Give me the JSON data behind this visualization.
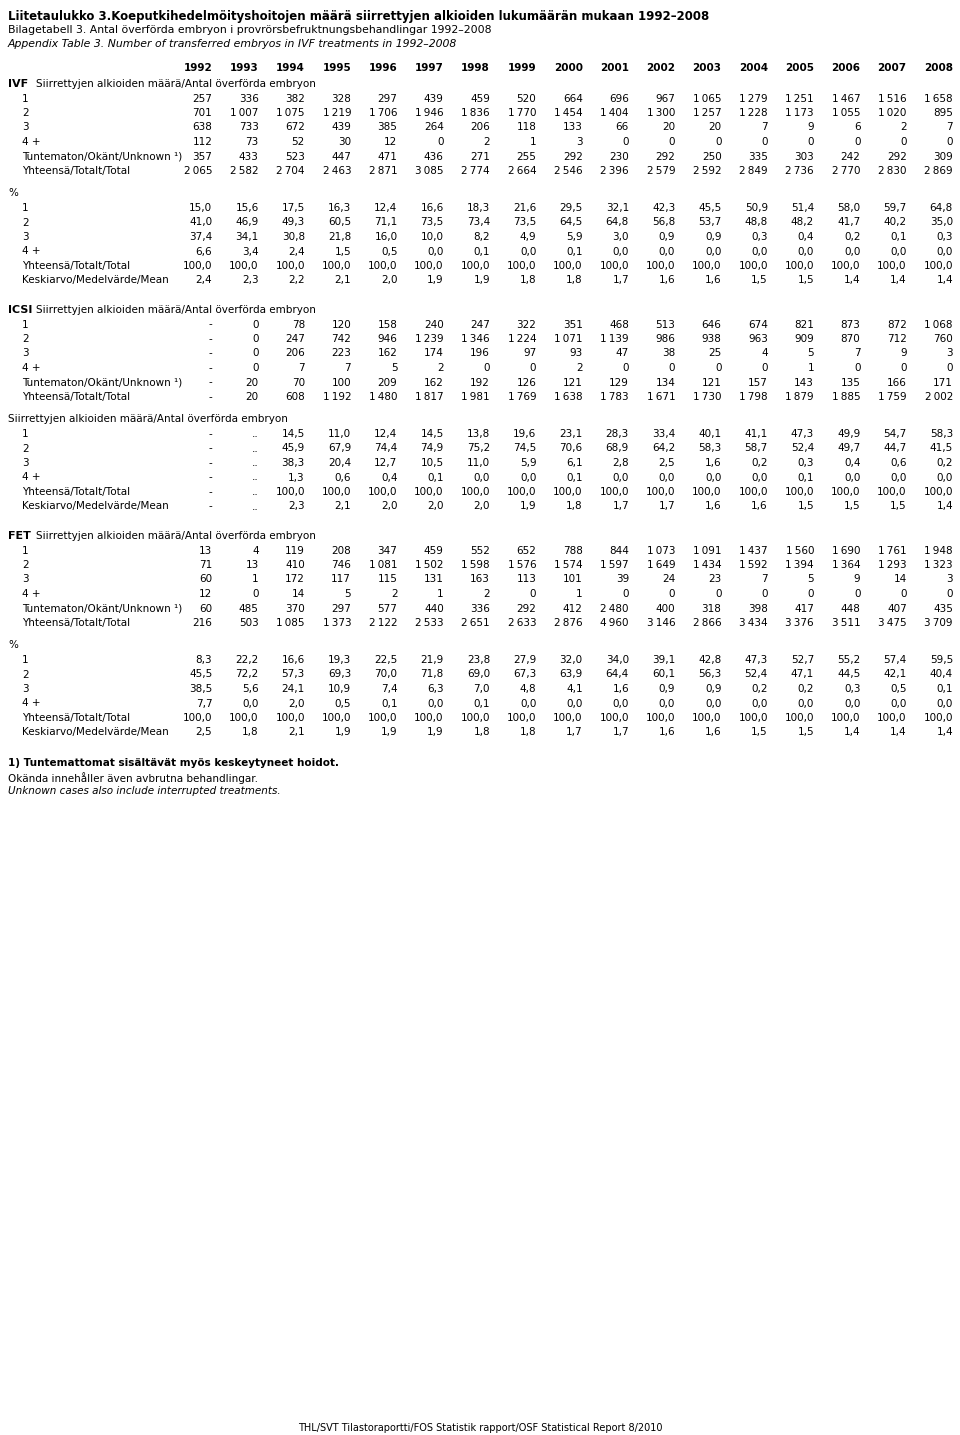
{
  "title1": "Liitetaulukko 3.Koeputkihedelmöityshoitojen määrä siirrettyjen alkioiden lukumäärän mukaan 1992–2008",
  "title2": "Bilagetabell 3. Antal överförda embryon i provrörsbefruktnungsbehandlingar 1992–2008",
  "title3": "Appendix Table 3. Number of transferred embryos in IVF treatments in 1992–2008",
  "years": [
    "1992",
    "1993",
    "1994",
    "1995",
    "1996",
    "1997",
    "1998",
    "1999",
    "2000",
    "2001",
    "2002",
    "2003",
    "2004",
    "2005",
    "2006",
    "2007",
    "2008"
  ],
  "footnote1": "1) Tuntemattomat sisältävät myös keskeytyneet hoidot.",
  "footnote2": "Okända innehåller även avbrutna behandlingar.",
  "footnote3": "Unknown cases also include interrupted treatments.",
  "footer": "THL/SVT Tilastoraportti/FOS Statistik rapport/OSF Statistical Report 8/2010",
  "IVF": {
    "counts": {
      "1": [
        257,
        336,
        382,
        328,
        297,
        439,
        459,
        520,
        664,
        696,
        967,
        1065,
        1279,
        1251,
        1467,
        1516,
        1658
      ],
      "2": [
        701,
        1007,
        1075,
        1219,
        1706,
        1946,
        1836,
        1770,
        1454,
        1404,
        1300,
        1257,
        1228,
        1173,
        1055,
        1020,
        895
      ],
      "3": [
        638,
        733,
        672,
        439,
        385,
        264,
        206,
        118,
        133,
        66,
        20,
        20,
        7,
        9,
        6,
        2,
        7
      ],
      "4+": [
        112,
        73,
        52,
        30,
        12,
        0,
        2,
        1,
        3,
        0,
        0,
        0,
        0,
        0,
        0,
        0,
        0
      ],
      "Tuntematon": [
        357,
        433,
        523,
        447,
        471,
        436,
        271,
        255,
        292,
        230,
        292,
        250,
        335,
        303,
        242,
        292,
        309
      ],
      "Total": [
        2065,
        2582,
        2704,
        2463,
        2871,
        3085,
        2774,
        2664,
        2546,
        2396,
        2579,
        2592,
        2849,
        2736,
        2770,
        2830,
        2869
      ]
    },
    "pct": {
      "1": [
        "15,0",
        "15,6",
        "17,5",
        "16,3",
        "12,4",
        "16,6",
        "18,3",
        "21,6",
        "29,5",
        "32,1",
        "42,3",
        "45,5",
        "50,9",
        "51,4",
        "58,0",
        "59,7",
        "64,8"
      ],
      "2": [
        "41,0",
        "46,9",
        "49,3",
        "60,5",
        "71,1",
        "73,5",
        "73,4",
        "73,5",
        "64,5",
        "64,8",
        "56,8",
        "53,7",
        "48,8",
        "48,2",
        "41,7",
        "40,2",
        "35,0"
      ],
      "3": [
        "37,4",
        "34,1",
        "30,8",
        "21,8",
        "16,0",
        "10,0",
        "8,2",
        "4,9",
        "5,9",
        "3,0",
        "0,9",
        "0,9",
        "0,3",
        "0,4",
        "0,2",
        "0,1",
        "0,3"
      ],
      "4+": [
        "6,6",
        "3,4",
        "2,4",
        "1,5",
        "0,5",
        "0,0",
        "0,1",
        "0,0",
        "0,1",
        "0,0",
        "0,0",
        "0,0",
        "0,0",
        "0,0",
        "0,0",
        "0,0",
        "0,0"
      ],
      "Total": [
        "100,0",
        "100,0",
        "100,0",
        "100,0",
        "100,0",
        "100,0",
        "100,0",
        "100,0",
        "100,0",
        "100,0",
        "100,0",
        "100,0",
        "100,0",
        "100,0",
        "100,0",
        "100,0",
        "100,0"
      ],
      "Mean": [
        "2,4",
        "2,3",
        "2,2",
        "2,1",
        "2,0",
        "1,9",
        "1,9",
        "1,8",
        "1,8",
        "1,7",
        "1,6",
        "1,6",
        "1,5",
        "1,5",
        "1,4",
        "1,4",
        "1,4"
      ]
    }
  },
  "ICSI": {
    "counts": {
      "1": [
        "-",
        0,
        78,
        120,
        158,
        240,
        247,
        322,
        351,
        468,
        513,
        646,
        674,
        821,
        873,
        872,
        1068
      ],
      "2": [
        "-",
        0,
        247,
        742,
        946,
        1239,
        1346,
        1224,
        1071,
        1139,
        986,
        938,
        963,
        909,
        870,
        712,
        760
      ],
      "3": [
        "-",
        0,
        206,
        223,
        162,
        174,
        196,
        97,
        93,
        47,
        38,
        25,
        4,
        5,
        7,
        9,
        3
      ],
      "4+": [
        "-",
        0,
        7,
        7,
        5,
        2,
        0,
        0,
        2,
        0,
        0,
        0,
        0,
        1,
        0,
        0,
        0
      ],
      "Tuntematon": [
        "-",
        20,
        70,
        100,
        209,
        162,
        192,
        126,
        121,
        129,
        134,
        121,
        157,
        143,
        135,
        166,
        171
      ],
      "Total": [
        "-",
        20,
        608,
        1192,
        1480,
        1817,
        1981,
        1769,
        1638,
        1783,
        1671,
        1730,
        1798,
        1879,
        1885,
        1759,
        2002
      ]
    },
    "pct": {
      "1": [
        "-",
        "..",
        "14,5",
        "11,0",
        "12,4",
        "14,5",
        "13,8",
        "19,6",
        "23,1",
        "28,3",
        "33,4",
        "40,1",
        "41,1",
        "47,3",
        "49,9",
        "54,7",
        "58,3"
      ],
      "2": [
        "-",
        "..",
        "45,9",
        "67,9",
        "74,4",
        "74,9",
        "75,2",
        "74,5",
        "70,6",
        "68,9",
        "64,2",
        "58,3",
        "58,7",
        "52,4",
        "49,7",
        "44,7",
        "41,5"
      ],
      "3": [
        "-",
        "..",
        "38,3",
        "20,4",
        "12,7",
        "10,5",
        "11,0",
        "5,9",
        "6,1",
        "2,8",
        "2,5",
        "1,6",
        "0,2",
        "0,3",
        "0,4",
        "0,6",
        "0,2"
      ],
      "4+": [
        "-",
        "..",
        "1,3",
        "0,6",
        "0,4",
        "0,1",
        "0,0",
        "0,0",
        "0,1",
        "0,0",
        "0,0",
        "0,0",
        "0,0",
        "0,1",
        "0,0",
        "0,0",
        "0,0"
      ],
      "Total": [
        "-",
        "..",
        "100,0",
        "100,0",
        "100,0",
        "100,0",
        "100,0",
        "100,0",
        "100,0",
        "100,0",
        "100,0",
        "100,0",
        "100,0",
        "100,0",
        "100,0",
        "100,0",
        "100,0"
      ],
      "Mean": [
        "-",
        "..",
        "2,3",
        "2,1",
        "2,0",
        "2,0",
        "2,0",
        "1,9",
        "1,8",
        "1,7",
        "1,7",
        "1,6",
        "1,6",
        "1,5",
        "1,5",
        "1,5",
        "1,4"
      ]
    }
  },
  "FET": {
    "counts": {
      "1": [
        13,
        4,
        119,
        208,
        347,
        459,
        552,
        652,
        788,
        844,
        1073,
        1091,
        1437,
        1560,
        1690,
        1761,
        1948
      ],
      "2": [
        71,
        13,
        410,
        746,
        1081,
        1502,
        1598,
        1576,
        1574,
        1597,
        1649,
        1434,
        1592,
        1394,
        1364,
        1293,
        1323
      ],
      "3": [
        60,
        1,
        172,
        117,
        115,
        131,
        163,
        113,
        101,
        39,
        24,
        23,
        7,
        5,
        9,
        14,
        3
      ],
      "4+": [
        12,
        0,
        14,
        5,
        2,
        1,
        2,
        0,
        1,
        0,
        0,
        0,
        0,
        0,
        0,
        0,
        0
      ],
      "Tuntematon": [
        60,
        485,
        370,
        297,
        577,
        440,
        336,
        292,
        412,
        2480,
        400,
        318,
        398,
        417,
        448,
        407,
        435
      ],
      "Total": [
        216,
        503,
        1085,
        1373,
        2122,
        2533,
        2651,
        2633,
        2876,
        4960,
        3146,
        2866,
        3434,
        3376,
        3511,
        3475,
        3709
      ]
    },
    "pct": {
      "1": [
        "8,3",
        "22,2",
        "16,6",
        "19,3",
        "22,5",
        "21,9",
        "23,8",
        "27,9",
        "32,0",
        "34,0",
        "39,1",
        "42,8",
        "47,3",
        "52,7",
        "55,2",
        "57,4",
        "59,5"
      ],
      "2": [
        "45,5",
        "72,2",
        "57,3",
        "69,3",
        "70,0",
        "71,8",
        "69,0",
        "67,3",
        "63,9",
        "64,4",
        "60,1",
        "56,3",
        "52,4",
        "47,1",
        "44,5",
        "42,1",
        "40,4"
      ],
      "3": [
        "38,5",
        "5,6",
        "24,1",
        "10,9",
        "7,4",
        "6,3",
        "7,0",
        "4,8",
        "4,1",
        "1,6",
        "0,9",
        "0,9",
        "0,2",
        "0,2",
        "0,3",
        "0,5",
        "0,1"
      ],
      "4+": [
        "7,7",
        "0,0",
        "2,0",
        "0,5",
        "0,1",
        "0,0",
        "0,1",
        "0,0",
        "0,0",
        "0,0",
        "0,0",
        "0,0",
        "0,0",
        "0,0",
        "0,0",
        "0,0",
        "0,0"
      ],
      "Total": [
        "100,0",
        "100,0",
        "100,0",
        "100,0",
        "100,0",
        "100,0",
        "100,0",
        "100,0",
        "100,0",
        "100,0",
        "100,0",
        "100,0",
        "100,0",
        "100,0",
        "100,0",
        "100,0",
        "100,0"
      ],
      "Mean": [
        "2,5",
        "1,8",
        "2,1",
        "1,9",
        "1,9",
        "1,9",
        "1,8",
        "1,8",
        "1,7",
        "1,7",
        "1,6",
        "1,6",
        "1,5",
        "1,5",
        "1,4",
        "1,4",
        "1,4"
      ]
    }
  }
}
